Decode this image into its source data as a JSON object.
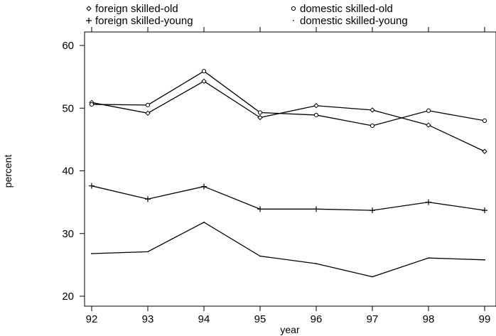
{
  "chart_data": {
    "type": "line",
    "x": [
      92,
      93,
      94,
      95,
      96,
      97,
      98,
      99
    ],
    "xlabel": "year",
    "ylabel": "percent",
    "xlim": [
      92,
      99
    ],
    "ylim": [
      20,
      60
    ],
    "yticks": [
      20,
      30,
      40,
      50,
      60
    ],
    "xticks": [
      92,
      93,
      94,
      95,
      96,
      97,
      98,
      99
    ],
    "grid": false,
    "legend_position": "top",
    "series": [
      {
        "name": "foreign skilled-old",
        "marker": "diamond",
        "values": [
          50.9,
          49.2,
          54.3,
          48.5,
          50.4,
          49.7,
          47.3,
          43.1
        ]
      },
      {
        "name": "domestic skilled-old",
        "marker": "circle",
        "values": [
          50.6,
          50.5,
          55.9,
          49.3,
          48.9,
          47.2,
          49.6,
          48.0
        ]
      },
      {
        "name": "foreign skilled-young",
        "marker": "plus",
        "values": [
          37.6,
          35.5,
          37.5,
          33.9,
          33.9,
          33.7,
          35.0,
          33.7
        ]
      },
      {
        "name": "domestic skilled-young",
        "marker": "dot",
        "values": [
          26.8,
          27.1,
          31.8,
          26.4,
          25.2,
          23.1,
          26.1,
          25.8
        ]
      }
    ]
  }
}
